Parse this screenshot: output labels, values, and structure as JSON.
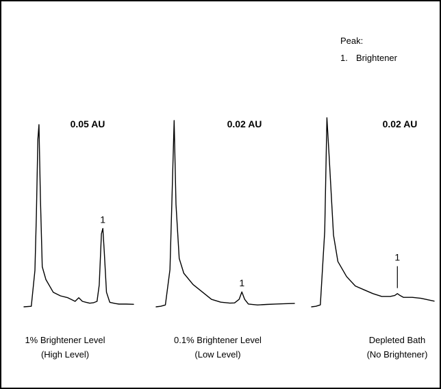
{
  "legend": {
    "heading": "Peak:",
    "items": [
      {
        "num": "1.",
        "name": "Brightener"
      }
    ]
  },
  "chart_data": [
    {
      "type": "line",
      "scale_label": "0.05 AU",
      "caption_line1": "1% Brightener Level",
      "caption_line2": "(High Level)",
      "peak_label": "1",
      "trace": [
        [
          0,
          0
        ],
        [
          2,
          0.3
        ],
        [
          3,
          20
        ],
        [
          3.4,
          50
        ],
        [
          3.8,
          92
        ],
        [
          4.1,
          100
        ],
        [
          4.5,
          60
        ],
        [
          5,
          22
        ],
        [
          6,
          15
        ],
        [
          8,
          8
        ],
        [
          10,
          6
        ],
        [
          12,
          5
        ],
        [
          14,
          3
        ],
        [
          15,
          5
        ],
        [
          16,
          3
        ],
        [
          17,
          2.5
        ],
        [
          18,
          2
        ],
        [
          19,
          2.2
        ],
        [
          20,
          3
        ],
        [
          20.6,
          12
        ],
        [
          21.2,
          40
        ],
        [
          21.6,
          43
        ],
        [
          22,
          30
        ],
        [
          22.6,
          8
        ],
        [
          23.5,
          2.5
        ],
        [
          25,
          1.8
        ],
        [
          26,
          1.5
        ],
        [
          28,
          1.5
        ],
        [
          30,
          1.4
        ]
      ]
    },
    {
      "type": "line",
      "scale_label": "0.02 AU",
      "caption_line1": "0.1% Brightener Level",
      "caption_line2": "(Low Level)",
      "peak_label": "1",
      "trace": [
        [
          0,
          0
        ],
        [
          1,
          0.3
        ],
        [
          2,
          1
        ],
        [
          3,
          20
        ],
        [
          3.4,
          55
        ],
        [
          3.9,
          100
        ],
        [
          4.3,
          55
        ],
        [
          5,
          26
        ],
        [
          6,
          18
        ],
        [
          8,
          12
        ],
        [
          10,
          8
        ],
        [
          12,
          4
        ],
        [
          14,
          2.5
        ],
        [
          16,
          2
        ],
        [
          17,
          2.1
        ],
        [
          18,
          4
        ],
        [
          18.6,
          8
        ],
        [
          19.2,
          4
        ],
        [
          20,
          1.5
        ],
        [
          22,
          1
        ],
        [
          24,
          1.3
        ],
        [
          26,
          1.5
        ],
        [
          28,
          1.7
        ],
        [
          30,
          1.8
        ]
      ]
    },
    {
      "type": "line",
      "scale_label": "0.02 AU",
      "caption_line1": "Depleted Bath",
      "caption_line2": "(No Brightener)",
      "peak_label": "1",
      "trace": [
        [
          0,
          0
        ],
        [
          1,
          0.3
        ],
        [
          2,
          1
        ],
        [
          3,
          40
        ],
        [
          3.5,
          100
        ],
        [
          4,
          80
        ],
        [
          5,
          38
        ],
        [
          6,
          24
        ],
        [
          8,
          16
        ],
        [
          10,
          11
        ],
        [
          12,
          9
        ],
        [
          14,
          7
        ],
        [
          16,
          5.5
        ],
        [
          18,
          5.5
        ],
        [
          19,
          6
        ],
        [
          19.6,
          7
        ],
        [
          20.2,
          6
        ],
        [
          21,
          5
        ],
        [
          23,
          5
        ],
        [
          25,
          4.5
        ],
        [
          27,
          3.5
        ],
        [
          28,
          3
        ]
      ]
    }
  ]
}
